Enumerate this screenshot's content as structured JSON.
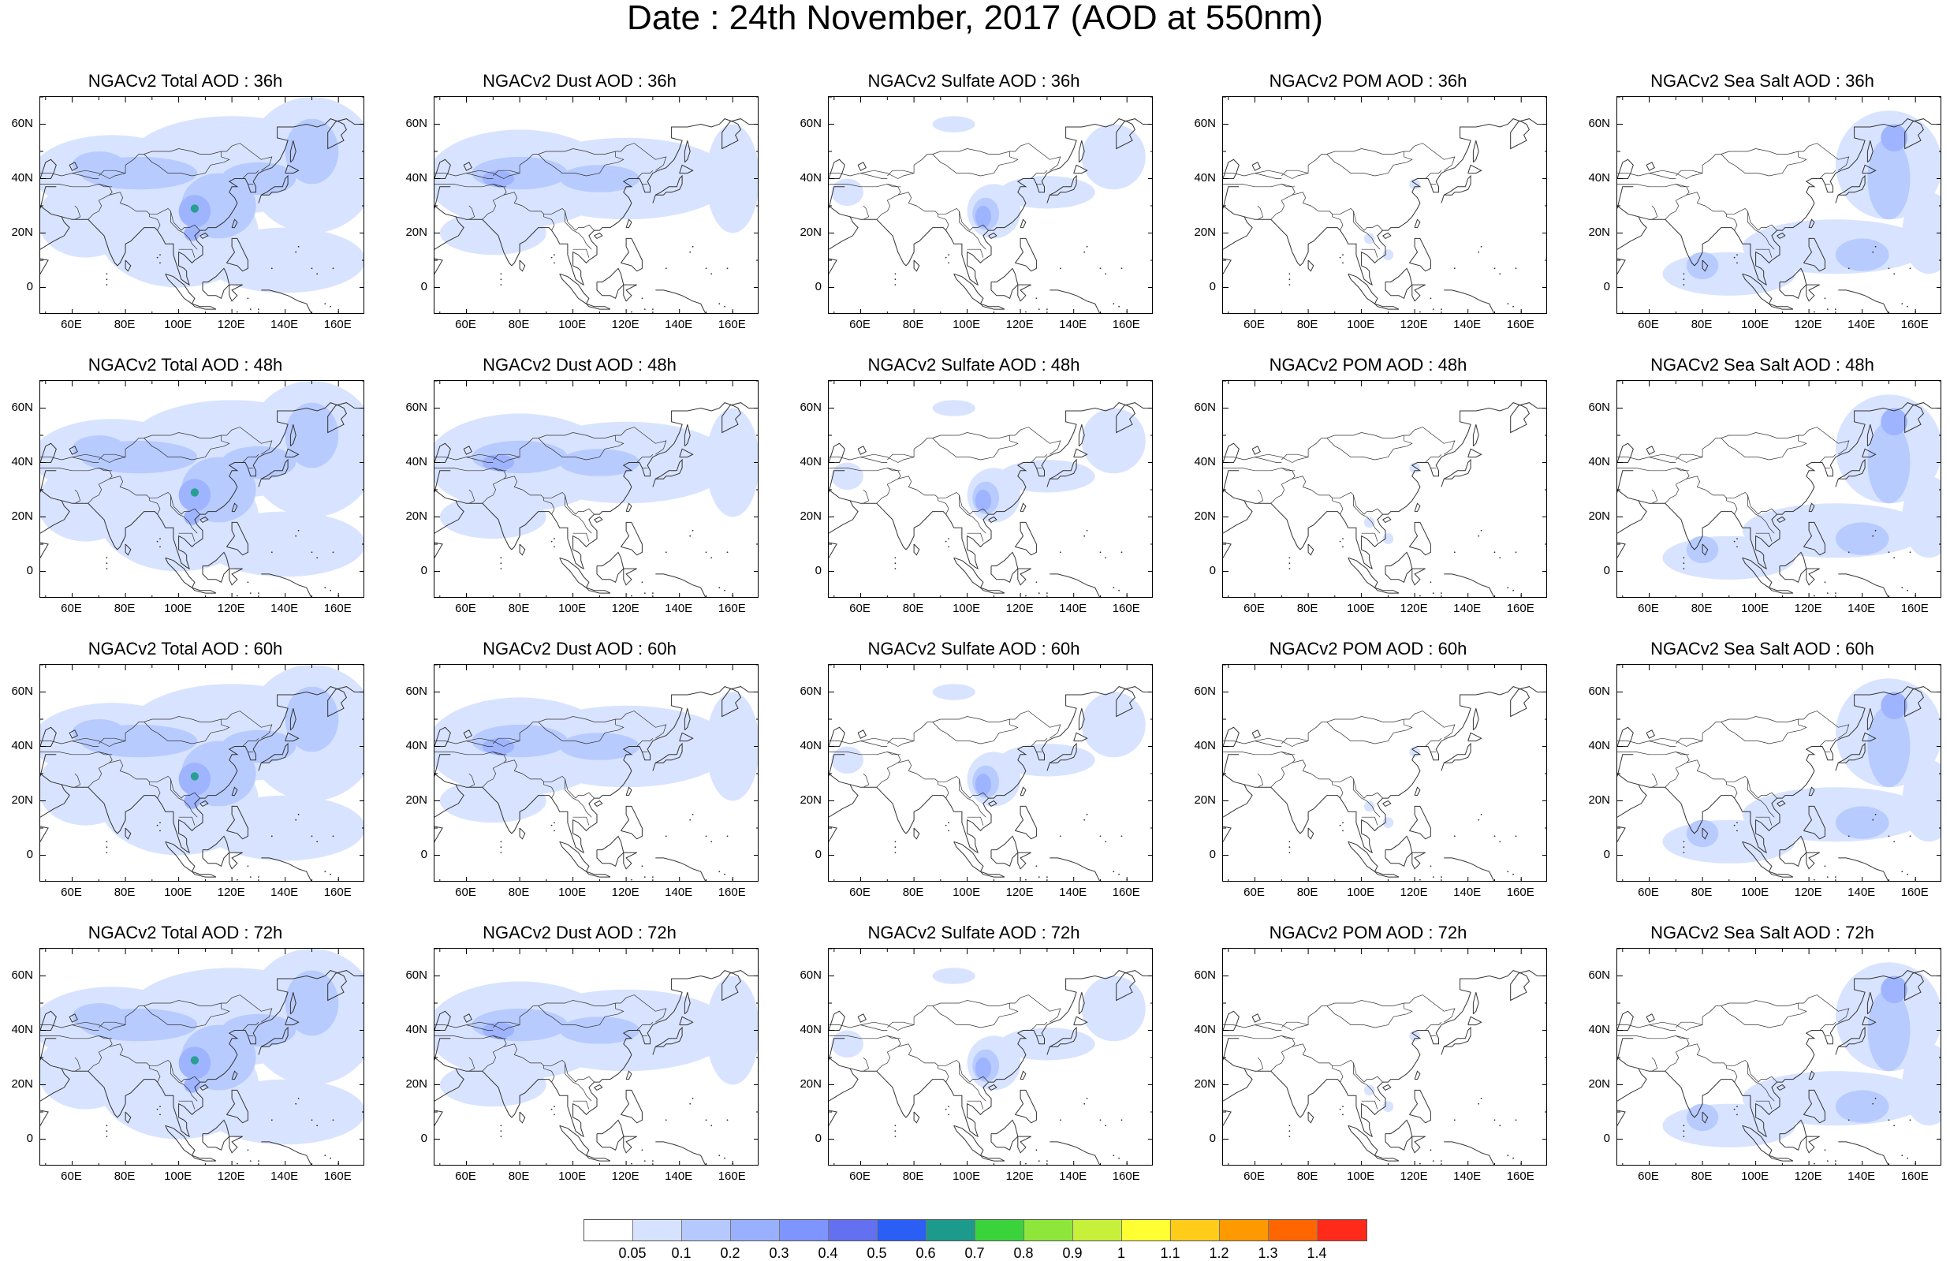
{
  "title": "Date : 24th November, 2017 (AOD at 550nm)",
  "panels": [
    {
      "title": "NGACv2 Total AOD : 36h",
      "species": "total",
      "hour": "36h"
    },
    {
      "title": "NGACv2 Dust AOD : 36h",
      "species": "dust",
      "hour": "36h"
    },
    {
      "title": "NGACv2 Sulfate AOD : 36h",
      "species": "sulfate",
      "hour": "36h"
    },
    {
      "title": "NGACv2 POM AOD : 36h",
      "species": "pom",
      "hour": "36h"
    },
    {
      "title": "NGACv2 Sea Salt AOD : 36h",
      "species": "seasalt",
      "hour": "36h"
    },
    {
      "title": "NGACv2 Total AOD : 48h",
      "species": "total",
      "hour": "48h"
    },
    {
      "title": "NGACv2 Dust AOD : 48h",
      "species": "dust",
      "hour": "48h"
    },
    {
      "title": "NGACv2 Sulfate AOD : 48h",
      "species": "sulfate",
      "hour": "48h"
    },
    {
      "title": "NGACv2 POM AOD : 48h",
      "species": "pom",
      "hour": "48h"
    },
    {
      "title": "NGACv2 Sea Salt AOD : 48h",
      "species": "seasalt",
      "hour": "48h"
    },
    {
      "title": "NGACv2 Total AOD : 60h",
      "species": "total",
      "hour": "60h"
    },
    {
      "title": "NGACv2 Dust AOD : 60h",
      "species": "dust",
      "hour": "60h"
    },
    {
      "title": "NGACv2 Sulfate AOD : 60h",
      "species": "sulfate",
      "hour": "60h"
    },
    {
      "title": "NGACv2 POM AOD : 60h",
      "species": "pom",
      "hour": "60h"
    },
    {
      "title": "NGACv2 Sea Salt AOD : 60h",
      "species": "seasalt",
      "hour": "60h"
    },
    {
      "title": "NGACv2 Total AOD : 72h",
      "species": "total",
      "hour": "72h"
    },
    {
      "title": "NGACv2 Dust AOD : 72h",
      "species": "dust",
      "hour": "72h"
    },
    {
      "title": "NGACv2 Sulfate AOD : 72h",
      "species": "sulfate",
      "hour": "72h"
    },
    {
      "title": "NGACv2 POM AOD : 72h",
      "species": "pom",
      "hour": "72h"
    },
    {
      "title": "NGACv2 Sea Salt  AOD : 72h",
      "species": "seasalt",
      "hour": "72h"
    }
  ],
  "lat_ticks": [
    "60N",
    "40N",
    "20N",
    "0"
  ],
  "lon_ticks": [
    "60E",
    "80E",
    "100E",
    "120E",
    "140E",
    "160E"
  ],
  "colorbar": {
    "labels": [
      "0.05",
      "0.1",
      "0.2",
      "0.3",
      "0.4",
      "0.5",
      "0.6",
      "0.7",
      "0.8",
      "0.9",
      "1",
      "1.1",
      "1.2",
      "1.3",
      "1.4"
    ],
    "colors": [
      "#ffffff",
      "#d6e2ff",
      "#b5c9ff",
      "#99b0ff",
      "#7e94ff",
      "#6370f0",
      "#2a5ef5",
      "#1c9a8c",
      "#3bd33b",
      "#8ee63b",
      "#c7f03b",
      "#ffff33",
      "#ffcc1a",
      "#ff9900",
      "#ff6600",
      "#ff2a1a"
    ]
  },
  "map_colors": {
    "land_outline": "#333333",
    "light": "#d6e2ff",
    "mid": "#b5c9ff",
    "strong": "#99b0ff",
    "peak": "#7e94ff",
    "hotspot": "#1c9a8c"
  }
}
